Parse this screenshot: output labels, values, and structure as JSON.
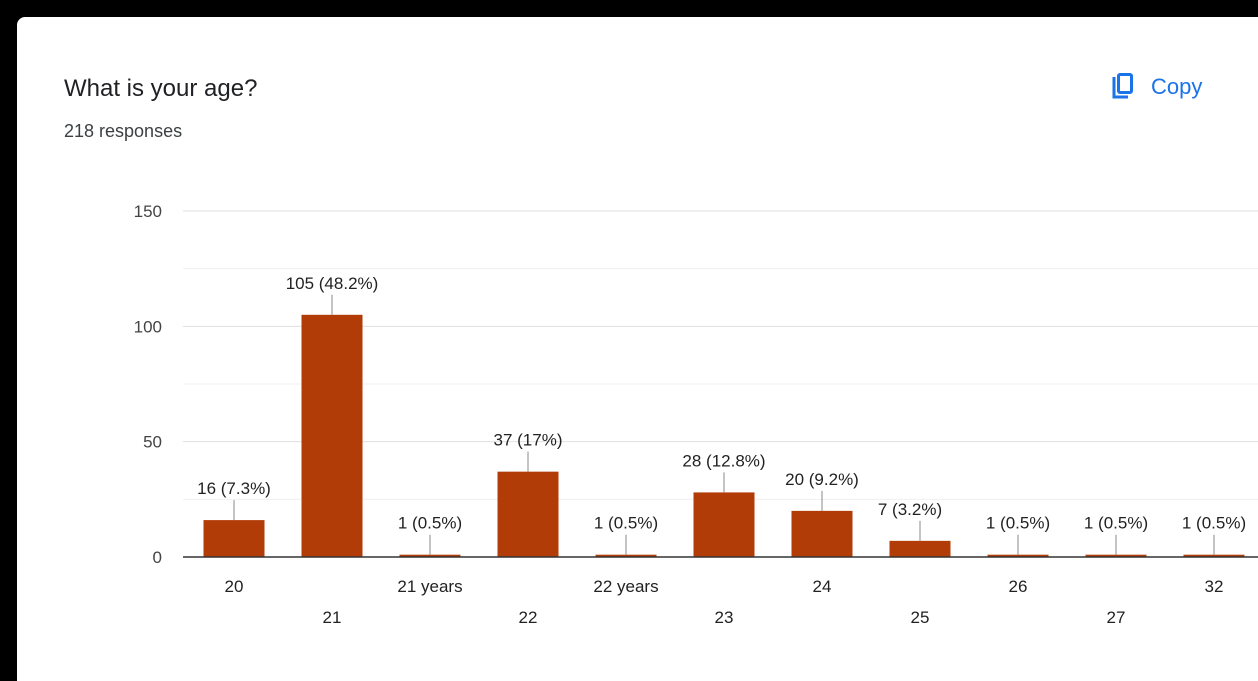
{
  "card": {
    "title": "What is your age?",
    "responses": "218 responses",
    "copy_label": "Copy"
  },
  "colors": {
    "bar": "#b23c07",
    "accent": "#1a73e8",
    "grid": "#e6e6e6",
    "axis": "#333333"
  },
  "icons": {
    "copy": "copy-icon"
  },
  "chart_data": {
    "type": "bar",
    "categories": [
      "20",
      "21",
      "21 years",
      "22",
      "22 years",
      "23",
      "24",
      "25",
      "26",
      "27",
      "32"
    ],
    "values": [
      16,
      105,
      1,
      37,
      1,
      28,
      20,
      7,
      1,
      1,
      1
    ],
    "data_labels": [
      "16 (7.3%)",
      "105 (48.2%)",
      "1 (0.5%)",
      "37 (17%)",
      "1 (0.5%)",
      "28 (12.8%)",
      "20 (9.2%)",
      "7 (3.2%)",
      "1 (0.5%)",
      "1 (0.5%)",
      "1 (0.5%)"
    ],
    "y_ticks": [
      0,
      50,
      100,
      150
    ],
    "ylim": [
      0,
      150
    ],
    "grid": true,
    "legend": "none"
  }
}
